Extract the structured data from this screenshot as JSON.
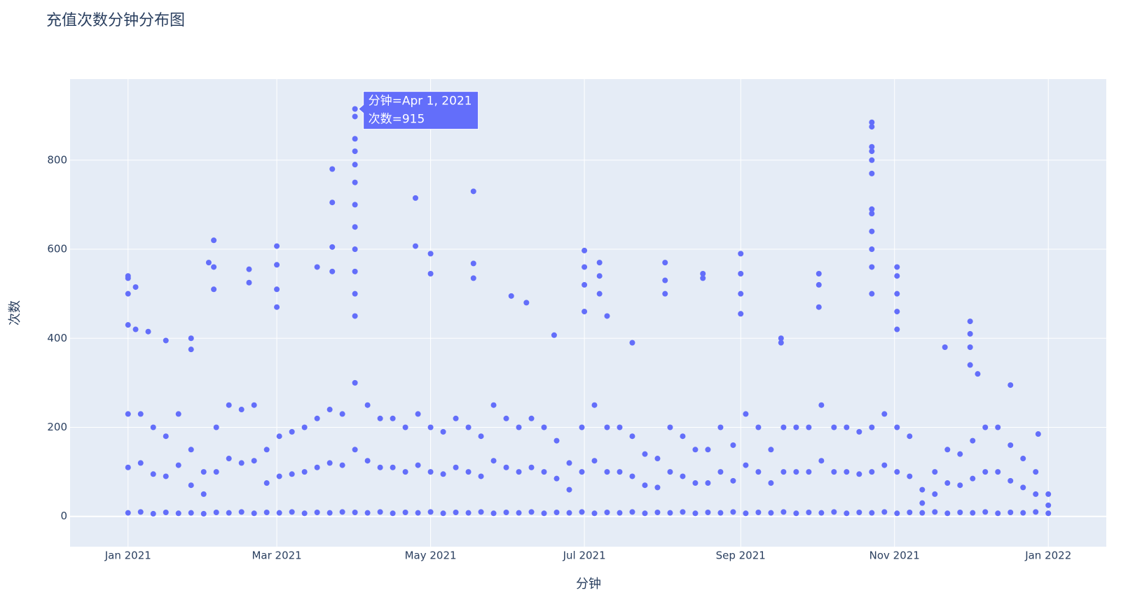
{
  "chart_data": {
    "type": "scatter",
    "title": "充值次数分钟分布图",
    "x_label": "分钟",
    "y_label": "次数",
    "color": "#636efa",
    "grid": true,
    "xlim": [
      "2020-12-09",
      "2022-01-24"
    ],
    "xticks": [
      {
        "value": "2021-01-01",
        "label": "Jan 2021"
      },
      {
        "value": "2021-03-01",
        "label": "Mar 2021"
      },
      {
        "value": "2021-05-01",
        "label": "May 2021"
      },
      {
        "value": "2021-07-01",
        "label": "Jul 2021"
      },
      {
        "value": "2021-09-01",
        "label": "Sep 2021"
      },
      {
        "value": "2021-11-01",
        "label": "Nov 2021"
      },
      {
        "value": "2022-01-01",
        "label": "Jan 2022"
      }
    ],
    "ylim": [
      -68,
      982
    ],
    "yticks": [
      0,
      200,
      400,
      600,
      800
    ],
    "tooltip": {
      "x": "2021-04-01",
      "y": 915,
      "lines": [
        "分钟=Apr 1, 2021",
        "次数=915"
      ]
    },
    "x": [
      "2021-01-01",
      "2021-01-01",
      "2021-01-01",
      "2021-01-06",
      "2021-01-06",
      "2021-01-06",
      "2021-01-11",
      "2021-01-11",
      "2021-01-11",
      "2021-01-16",
      "2021-01-16",
      "2021-01-16",
      "2021-01-21",
      "2021-01-21",
      "2021-01-21",
      "2021-01-26",
      "2021-01-26",
      "2021-01-26",
      "2021-01-31",
      "2021-01-31",
      "2021-01-31",
      "2021-02-05",
      "2021-02-05",
      "2021-02-05",
      "2021-02-10",
      "2021-02-10",
      "2021-02-10",
      "2021-02-15",
      "2021-02-15",
      "2021-02-15",
      "2021-02-20",
      "2021-02-20",
      "2021-02-20",
      "2021-02-25",
      "2021-02-25",
      "2021-02-25",
      "2021-03-02",
      "2021-03-02",
      "2021-03-02",
      "2021-03-07",
      "2021-03-07",
      "2021-03-07",
      "2021-03-12",
      "2021-03-12",
      "2021-03-12",
      "2021-03-17",
      "2021-03-17",
      "2021-03-17",
      "2021-03-22",
      "2021-03-22",
      "2021-03-22",
      "2021-03-27",
      "2021-03-27",
      "2021-03-27",
      "2021-04-01",
      "2021-04-01",
      "2021-04-01",
      "2021-04-06",
      "2021-04-06",
      "2021-04-06",
      "2021-04-11",
      "2021-04-11",
      "2021-04-11",
      "2021-04-16",
      "2021-04-16",
      "2021-04-16",
      "2021-04-21",
      "2021-04-21",
      "2021-04-21",
      "2021-04-26",
      "2021-04-26",
      "2021-04-26",
      "2021-05-01",
      "2021-05-01",
      "2021-05-01",
      "2021-05-06",
      "2021-05-06",
      "2021-05-06",
      "2021-05-11",
      "2021-05-11",
      "2021-05-11",
      "2021-05-16",
      "2021-05-16",
      "2021-05-16",
      "2021-05-21",
      "2021-05-21",
      "2021-05-21",
      "2021-05-26",
      "2021-05-26",
      "2021-05-26",
      "2021-05-31",
      "2021-05-31",
      "2021-05-31",
      "2021-06-05",
      "2021-06-05",
      "2021-06-05",
      "2021-06-10",
      "2021-06-10",
      "2021-06-10",
      "2021-06-15",
      "2021-06-15",
      "2021-06-15",
      "2021-06-20",
      "2021-06-20",
      "2021-06-20",
      "2021-06-25",
      "2021-06-25",
      "2021-06-25",
      "2021-06-30",
      "2021-06-30",
      "2021-06-30",
      "2021-07-05",
      "2021-07-05",
      "2021-07-05",
      "2021-07-10",
      "2021-07-10",
      "2021-07-10",
      "2021-07-15",
      "2021-07-15",
      "2021-07-15",
      "2021-07-20",
      "2021-07-20",
      "2021-07-20",
      "2021-07-25",
      "2021-07-25",
      "2021-07-25",
      "2021-07-30",
      "2021-07-30",
      "2021-07-30",
      "2021-08-04",
      "2021-08-04",
      "2021-08-04",
      "2021-08-09",
      "2021-08-09",
      "2021-08-09",
      "2021-08-14",
      "2021-08-14",
      "2021-08-14",
      "2021-08-19",
      "2021-08-19",
      "2021-08-19",
      "2021-08-24",
      "2021-08-24",
      "2021-08-24",
      "2021-08-29",
      "2021-08-29",
      "2021-08-29",
      "2021-09-03",
      "2021-09-03",
      "2021-09-03",
      "2021-09-08",
      "2021-09-08",
      "2021-09-08",
      "2021-09-13",
      "2021-09-13",
      "2021-09-13",
      "2021-09-18",
      "2021-09-18",
      "2021-09-18",
      "2021-09-23",
      "2021-09-23",
      "2021-09-23",
      "2021-09-28",
      "2021-09-28",
      "2021-09-28",
      "2021-10-03",
      "2021-10-03",
      "2021-10-03",
      "2021-10-08",
      "2021-10-08",
      "2021-10-08",
      "2021-10-13",
      "2021-10-13",
      "2021-10-13",
      "2021-10-18",
      "2021-10-18",
      "2021-10-18",
      "2021-10-23",
      "2021-10-23",
      "2021-10-23",
      "2021-10-28",
      "2021-10-28",
      "2021-10-28",
      "2021-11-02",
      "2021-11-02",
      "2021-11-02",
      "2021-11-07",
      "2021-11-07",
      "2021-11-07",
      "2021-11-12",
      "2021-11-12",
      "2021-11-12",
      "2021-11-17",
      "2021-11-17",
      "2021-11-17",
      "2021-11-22",
      "2021-11-22",
      "2021-11-22",
      "2021-11-27",
      "2021-11-27",
      "2021-11-27",
      "2021-12-02",
      "2021-12-02",
      "2021-12-02",
      "2021-12-07",
      "2021-12-07",
      "2021-12-07",
      "2021-12-12",
      "2021-12-12",
      "2021-12-12",
      "2021-12-17",
      "2021-12-17",
      "2021-12-17",
      "2021-12-22",
      "2021-12-22",
      "2021-12-22",
      "2021-12-27",
      "2021-12-27",
      "2021-12-27",
      "2022-01-01",
      "2022-01-01",
      "2022-01-01",
      "2021-01-01",
      "2021-01-01",
      "2021-01-01",
      "2021-01-01",
      "2021-01-04",
      "2021-01-04",
      "2021-01-09",
      "2021-01-16",
      "2021-01-26",
      "2021-01-26",
      "2021-02-02",
      "2021-02-04",
      "2021-02-04",
      "2021-02-04",
      "2021-02-18",
      "2021-02-18",
      "2021-03-01",
      "2021-03-01",
      "2021-03-01",
      "2021-03-01",
      "2021-03-17",
      "2021-03-23",
      "2021-03-23",
      "2021-03-23",
      "2021-03-23",
      "2021-04-01",
      "2021-04-01",
      "2021-04-01",
      "2021-04-01",
      "2021-04-01",
      "2021-04-01",
      "2021-04-01",
      "2021-04-01",
      "2021-04-01",
      "2021-04-01",
      "2021-04-01",
      "2021-04-01",
      "2021-04-25",
      "2021-04-25",
      "2021-05-01",
      "2021-05-01",
      "2021-05-18",
      "2021-05-18",
      "2021-05-18",
      "2021-06-02",
      "2021-06-08",
      "2021-06-19",
      "2021-07-01",
      "2021-07-01",
      "2021-07-01",
      "2021-07-01",
      "2021-07-07",
      "2021-07-07",
      "2021-07-07",
      "2021-07-10",
      "2021-07-20",
      "2021-08-02",
      "2021-08-02",
      "2021-08-02",
      "2021-08-17",
      "2021-08-17",
      "2021-09-01",
      "2021-09-01",
      "2021-09-01",
      "2021-09-01",
      "2021-09-17",
      "2021-09-17",
      "2021-10-02",
      "2021-10-02",
      "2021-10-02",
      "2021-10-23",
      "2021-10-23",
      "2021-10-23",
      "2021-10-23",
      "2021-10-23",
      "2021-10-23",
      "2021-10-23",
      "2021-10-23",
      "2021-10-23",
      "2021-10-23",
      "2021-10-23",
      "2021-10-23",
      "2021-11-02",
      "2021-11-02",
      "2021-11-02",
      "2021-11-02",
      "2021-11-02",
      "2021-11-21",
      "2021-12-01",
      "2021-12-01",
      "2021-12-01",
      "2021-12-01",
      "2021-12-04",
      "2021-12-17",
      "2021-12-28"
    ],
    "values": [
      230,
      110,
      8,
      230,
      120,
      10,
      200,
      95,
      6,
      180,
      90,
      9,
      230,
      115,
      7,
      150,
      70,
      8,
      100,
      50,
      6,
      200,
      100,
      9,
      250,
      130,
      8,
      240,
      120,
      10,
      250,
      125,
      7,
      150,
      75,
      9,
      180,
      90,
      8,
      190,
      95,
      10,
      200,
      100,
      7,
      220,
      110,
      9,
      240,
      120,
      8,
      230,
      115,
      10,
      300,
      150,
      9,
      250,
      125,
      8,
      220,
      110,
      10,
      220,
      110,
      7,
      200,
      100,
      9,
      230,
      115,
      8,
      200,
      100,
      10,
      190,
      95,
      7,
      220,
      110,
      9,
      200,
      100,
      8,
      180,
      90,
      10,
      250,
      125,
      7,
      220,
      110,
      9,
      200,
      100,
      8,
      220,
      110,
      10,
      200,
      100,
      7,
      170,
      85,
      9,
      120,
      60,
      8,
      200,
      100,
      10,
      250,
      125,
      7,
      200,
      100,
      9,
      200,
      100,
      8,
      180,
      90,
      10,
      140,
      70,
      7,
      130,
      65,
      9,
      200,
      100,
      8,
      180,
      90,
      10,
      150,
      75,
      7,
      150,
      75,
      9,
      200,
      100,
      8,
      160,
      80,
      10,
      230,
      115,
      7,
      200,
      100,
      9,
      150,
      75,
      8,
      200,
      100,
      10,
      200,
      100,
      7,
      200,
      100,
      9,
      250,
      125,
      8,
      200,
      100,
      10,
      200,
      100,
      7,
      190,
      95,
      9,
      200,
      100,
      8,
      230,
      115,
      10,
      200,
      100,
      7,
      180,
      90,
      9,
      60,
      30,
      8,
      100,
      50,
      10,
      150,
      75,
      7,
      140,
      70,
      9,
      170,
      85,
      8,
      200,
      100,
      10,
      200,
      100,
      7,
      160,
      80,
      9,
      130,
      65,
      8,
      100,
      50,
      10,
      50,
      25,
      7,
      540,
      535,
      500,
      430,
      515,
      420,
      415,
      395,
      400,
      375,
      570,
      620,
      560,
      510,
      555,
      525,
      607,
      565,
      510,
      470,
      560,
      780,
      705,
      605,
      550,
      915,
      898,
      848,
      820,
      790,
      750,
      700,
      650,
      600,
      550,
      500,
      450,
      715,
      607,
      590,
      545,
      730,
      568,
      535,
      495,
      480,
      407,
      597,
      560,
      520,
      460,
      570,
      540,
      500,
      450,
      390,
      570,
      530,
      500,
      545,
      535,
      590,
      545,
      500,
      455,
      400,
      390,
      545,
      520,
      470,
      885,
      875,
      830,
      820,
      800,
      770,
      690,
      680,
      640,
      600,
      560,
      500,
      560,
      540,
      500,
      460,
      420,
      380,
      438,
      410,
      380,
      340,
      320,
      295,
      185
    ]
  }
}
